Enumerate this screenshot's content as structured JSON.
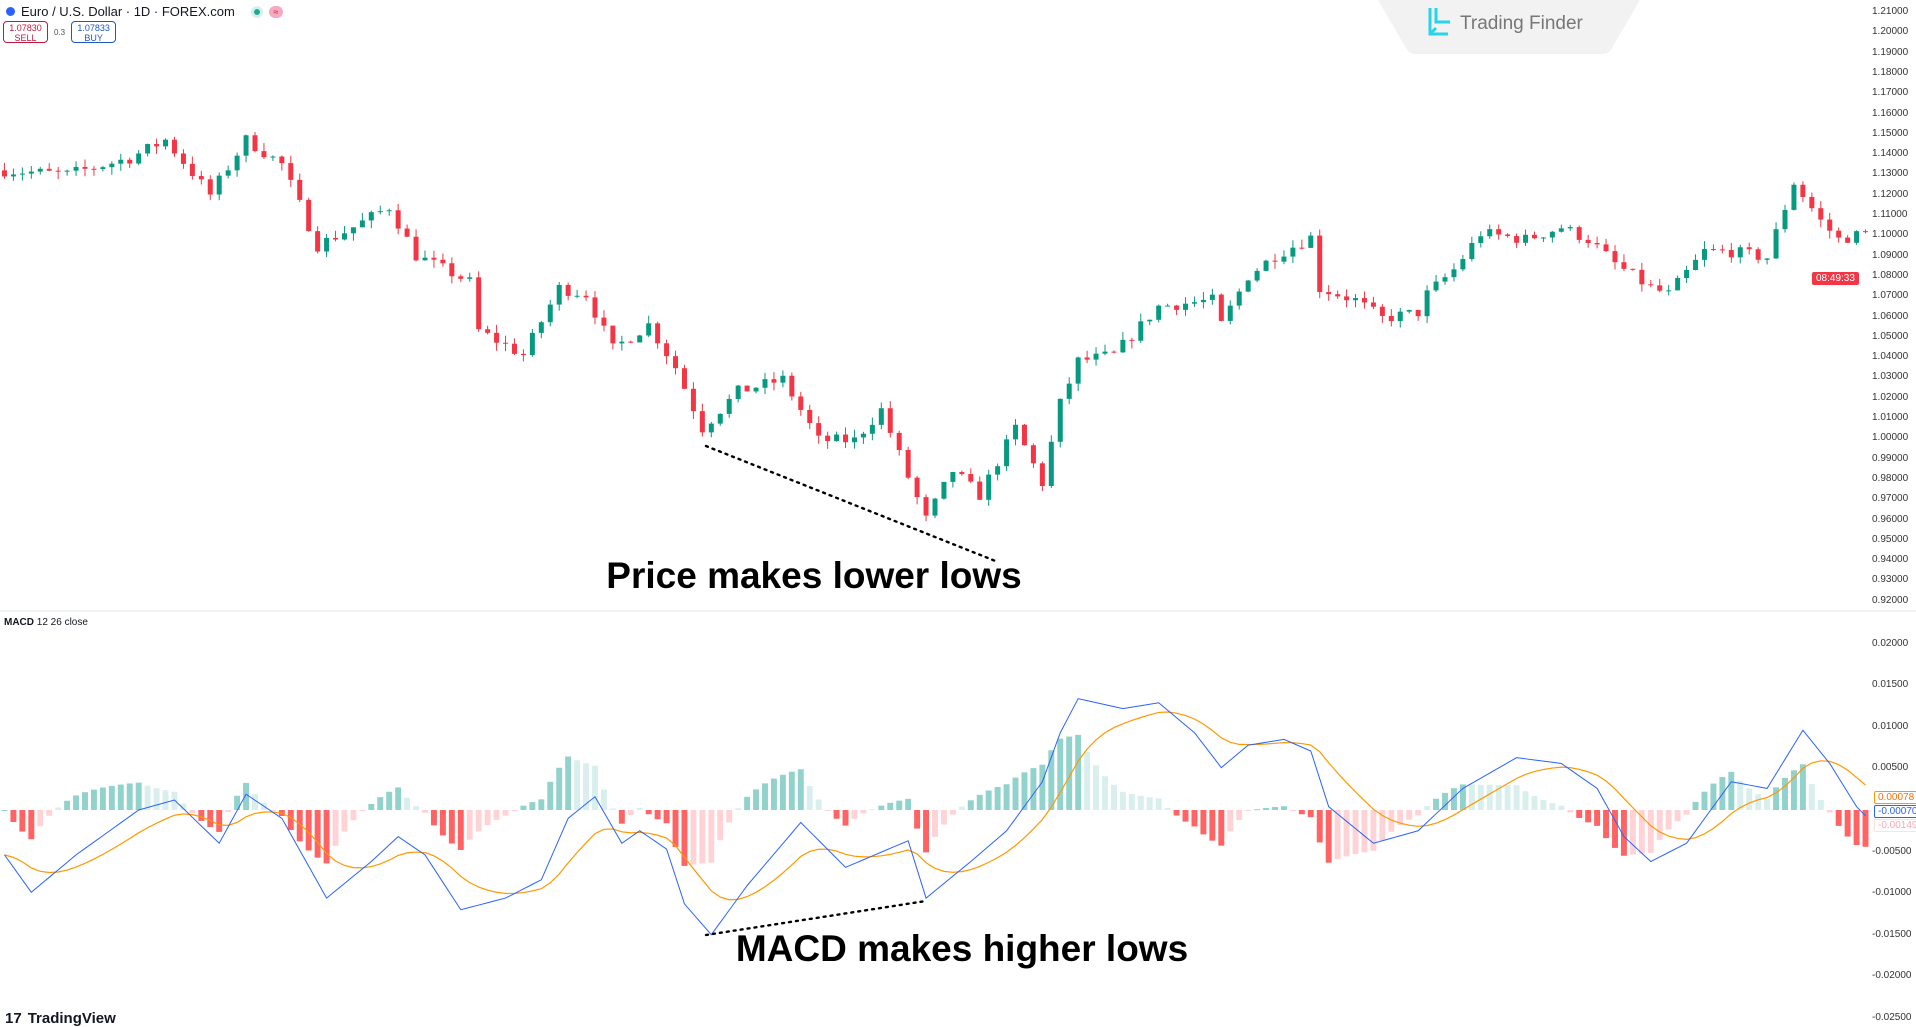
{
  "header": {
    "symbol": "Euro / U.S. Dollar · 1D · FOREX.com",
    "sell_price": "1.07830",
    "sell_label": "SELL",
    "spread": "0.3",
    "buy_price": "1.07833",
    "buy_label": "BUY"
  },
  "watermark": {
    "brand": "Trading Finder",
    "color": "#29d3e8"
  },
  "footer": {
    "brand": "TradingView"
  },
  "indicator": {
    "name": "MACD",
    "params": "12 26 close"
  },
  "price_axis": {
    "ticks": [
      "1.21000",
      "1.20000",
      "1.19000",
      "1.18000",
      "1.17000",
      "1.16000",
      "1.15000",
      "1.14000",
      "1.13000",
      "1.12000",
      "1.11000",
      "1.10000",
      "1.09000",
      "1.08000",
      "1.07000",
      "1.06000",
      "1.05000",
      "1.04000",
      "1.03000",
      "1.02000",
      "1.01000",
      "1.00000",
      "0.99000",
      "0.98000",
      "0.97000",
      "0.96000",
      "0.95000",
      "0.94000",
      "0.93000",
      "0.92000"
    ],
    "countdown": "08:49:33"
  },
  "macd_axis": {
    "ticks": [
      "0.02000",
      "0.01500",
      "0.01000",
      "0.00500",
      "-0.00500",
      "-0.01000",
      "-0.01500",
      "-0.02000",
      "-0.02500"
    ],
    "signal_value": "0.00078",
    "macd_value": "-0.00070",
    "hist_value": "-0.00149"
  },
  "annotations": {
    "price": "Price makes lower lows",
    "macd": "MACD makes higher lows"
  },
  "colors": {
    "up": "#089981",
    "down": "#f23645",
    "macd": "#2962ff",
    "signal": "#ff6d00",
    "hist_up": "#b2dfdb",
    "hist_down": "#f23645"
  },
  "chart_data": [
    {
      "type": "candlestick",
      "ylim": [
        0.92,
        1.21
      ],
      "grid": false,
      "close_path": [
        [
          0,
          1.132
        ],
        [
          7,
          1.13
        ],
        [
          14,
          1.138
        ],
        [
          18,
          1.147
        ],
        [
          23,
          1.12
        ],
        [
          27,
          1.147
        ],
        [
          31,
          1.135
        ],
        [
          35,
          1.095
        ],
        [
          39,
          1.104
        ],
        [
          43,
          1.114
        ],
        [
          46,
          1.09
        ],
        [
          52,
          1.077
        ],
        [
          53,
          1.053
        ],
        [
          58,
          1.041
        ],
        [
          62,
          1.074
        ],
        [
          65,
          1.071
        ],
        [
          68,
          1.044
        ],
        [
          72,
          1.056
        ],
        [
          75,
          1.035
        ],
        [
          78,
          1.005
        ],
        [
          82,
          1.023
        ],
        [
          87,
          1.029
        ],
        [
          91,
          0.999
        ],
        [
          95,
          0.999
        ],
        [
          98,
          1.014
        ],
        [
          101,
          0.981
        ],
        [
          103,
          0.96
        ],
        [
          106,
          0.984
        ],
        [
          109,
          0.972
        ],
        [
          113,
          1.005
        ],
        [
          116,
          0.978
        ],
        [
          118,
          1.017
        ],
        [
          120,
          1.038
        ],
        [
          124,
          1.041
        ],
        [
          129,
          1.065
        ],
        [
          135,
          1.068
        ],
        [
          136,
          1.056
        ],
        [
          139,
          1.08
        ],
        [
          142,
          1.09
        ],
        [
          146,
          1.099
        ],
        [
          147,
          1.074
        ],
        [
          151,
          1.068
        ],
        [
          154,
          1.059
        ],
        [
          158,
          1.062
        ],
        [
          159,
          1.071
        ],
        [
          162,
          1.083
        ],
        [
          165,
          1.101
        ],
        [
          170,
          1.098
        ],
        [
          174,
          1.104
        ],
        [
          177,
          1.098
        ],
        [
          180,
          1.086
        ],
        [
          184,
          1.074
        ],
        [
          186,
          1.071
        ],
        [
          190,
          1.092
        ],
        [
          193,
          1.092
        ],
        [
          197,
          1.089
        ],
        [
          200,
          1.126
        ],
        [
          203,
          1.107
        ],
        [
          205,
          1.098
        ],
        [
          208,
          1.101
        ]
      ]
    },
    {
      "type": "line",
      "name": "MACD",
      "ylim": [
        -0.025,
        0.022
      ],
      "macd_path": [
        [
          0,
          -0.0054
        ],
        [
          3,
          -0.0099
        ],
        [
          8,
          -0.0054
        ],
        [
          15,
          0
        ],
        [
          19,
          0.0012
        ],
        [
          24,
          -0.004
        ],
        [
          27,
          0.0019
        ],
        [
          31,
          -0.001
        ],
        [
          36,
          -0.0106
        ],
        [
          41,
          -0.0062
        ],
        [
          44,
          -0.0032
        ],
        [
          47,
          -0.0054
        ],
        [
          51,
          -0.012
        ],
        [
          56,
          -0.0106
        ],
        [
          60,
          -0.0084
        ],
        [
          63,
          -0.001
        ],
        [
          66,
          0.0016
        ],
        [
          69,
          -0.004
        ],
        [
          71,
          -0.0025
        ],
        [
          74,
          -0.0047
        ],
        [
          76,
          -0.0113
        ],
        [
          79,
          -0.015
        ],
        [
          83,
          -0.0091
        ],
        [
          89,
          -0.0015
        ],
        [
          94,
          -0.0069
        ],
        [
          101,
          -0.0037
        ],
        [
          103,
          -0.0106
        ],
        [
          108,
          -0.0062
        ],
        [
          112,
          -0.0025
        ],
        [
          116,
          0.0034
        ],
        [
          118,
          0.0093
        ],
        [
          120,
          0.0134
        ],
        [
          125,
          0.0122
        ],
        [
          129,
          0.0129
        ],
        [
          133,
          0.0093
        ],
        [
          136,
          0.0051
        ],
        [
          139,
          0.0078
        ],
        [
          143,
          0.0085
        ],
        [
          146,
          0.0071
        ],
        [
          148,
          0.0004
        ],
        [
          153,
          -0.004
        ],
        [
          158,
          -0.0025
        ],
        [
          163,
          0.0026
        ],
        [
          169,
          0.0063
        ],
        [
          174,
          0.0056
        ],
        [
          178,
          0.0026
        ],
        [
          181,
          -0.0032
        ],
        [
          184,
          -0.0062
        ],
        [
          188,
          -0.004
        ],
        [
          193,
          0.0034
        ],
        [
          197,
          0.0026
        ],
        [
          201,
          0.0096
        ],
        [
          204,
          0.0056
        ],
        [
          207,
          0.0004
        ],
        [
          208,
          -0.0007
        ]
      ]
    }
  ]
}
